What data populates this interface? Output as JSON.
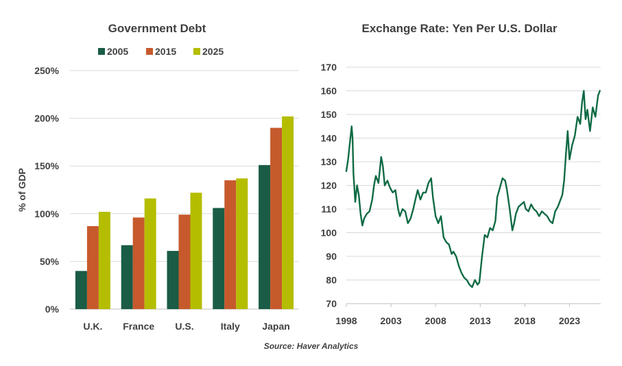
{
  "source_text": "Source: Haver Analytics",
  "chart_data": [
    {
      "type": "bar",
      "title": "Government Debt",
      "ylabel": "% of GDP",
      "xlabel": "",
      "ylim": [
        0,
        250
      ],
      "yticks": [
        "0%",
        "50%",
        "100%",
        "150%",
        "200%",
        "250%"
      ],
      "ytick_values": [
        0,
        50,
        100,
        150,
        200,
        250
      ],
      "categories": [
        "U.K.",
        "France",
        "U.S.",
        "Italy",
        "Japan"
      ],
      "series": [
        {
          "name": "2005",
          "color": "#1a5c45",
          "values": [
            40,
            67,
            61,
            106,
            151
          ]
        },
        {
          "name": "2015",
          "color": "#c65a2c",
          "values": [
            87,
            96,
            99,
            135,
            190
          ]
        },
        {
          "name": "2025",
          "color": "#b5bd00",
          "values": [
            102,
            116,
            122,
            137,
            202
          ]
        }
      ],
      "legend_position": "top-center",
      "grid": true
    },
    {
      "type": "line",
      "title": "Exchange Rate: Yen Per U.S. Dollar",
      "xlabel": "",
      "ylabel": "",
      "xlim": [
        1998,
        2026.5
      ],
      "ylim": [
        70,
        170
      ],
      "xticks": [
        "1998",
        "2003",
        "2008",
        "2013",
        "2018",
        "2023"
      ],
      "xtick_values": [
        1998,
        2003,
        2008,
        2013,
        2018,
        2023
      ],
      "yticks": [
        "70",
        "80",
        "90",
        "100",
        "110",
        "120",
        "130",
        "140",
        "150",
        "160",
        "170"
      ],
      "ytick_values": [
        70,
        80,
        90,
        100,
        110,
        120,
        130,
        140,
        150,
        160,
        170
      ],
      "grid": true,
      "series": [
        {
          "color": "#0f6a44",
          "x": [
            1998.0,
            1998.2,
            1998.4,
            1998.6,
            1998.7,
            1998.8,
            1999.0,
            1999.2,
            1999.4,
            1999.6,
            1999.8,
            2000.0,
            2000.3,
            2000.6,
            2000.9,
            2001.1,
            2001.3,
            2001.6,
            2001.9,
            2002.1,
            2002.3,
            2002.6,
            2002.9,
            2003.2,
            2003.5,
            2003.8,
            2004.0,
            2004.3,
            2004.6,
            2004.9,
            2005.2,
            2005.5,
            2005.8,
            2006.0,
            2006.3,
            2006.6,
            2006.9,
            2007.2,
            2007.5,
            2007.7,
            2008.0,
            2008.3,
            2008.6,
            2008.9,
            2009.2,
            2009.5,
            2009.8,
            2010.0,
            2010.3,
            2010.6,
            2010.9,
            2011.2,
            2011.5,
            2011.8,
            2012.1,
            2012.4,
            2012.7,
            2012.9,
            2013.2,
            2013.5,
            2013.8,
            2014.1,
            2014.4,
            2014.7,
            2014.9,
            2015.2,
            2015.5,
            2015.8,
            2016.0,
            2016.3,
            2016.6,
            2016.8,
            2017.0,
            2017.3,
            2017.6,
            2017.9,
            2018.1,
            2018.4,
            2018.7,
            2019.0,
            2019.3,
            2019.6,
            2019.9,
            2020.2,
            2020.5,
            2020.8,
            2021.1,
            2021.4,
            2021.7,
            2022.0,
            2022.2,
            2022.4,
            2022.6,
            2022.8,
            2023.0,
            2023.3,
            2023.6,
            2023.9,
            2024.2,
            2024.4,
            2024.6,
            2024.8,
            2025.0,
            2025.3,
            2025.6,
            2025.9,
            2026.2,
            2026.4
          ],
          "y": [
            126,
            131,
            138,
            145,
            140,
            125,
            113,
            120,
            116,
            108,
            103,
            106,
            108,
            109,
            114,
            120,
            124,
            121,
            132,
            128,
            120,
            122,
            119,
            117,
            118,
            110,
            107,
            110,
            109,
            104,
            106,
            110,
            115,
            118,
            114,
            117,
            117,
            121,
            123,
            115,
            107,
            104,
            107,
            98,
            96,
            95,
            91,
            92,
            90,
            86,
            83,
            81,
            80,
            78,
            77,
            80,
            78,
            79,
            90,
            99,
            98,
            102,
            101,
            105,
            115,
            119,
            123,
            122,
            118,
            110,
            101,
            104,
            108,
            111,
            112,
            113,
            110,
            109,
            112,
            110,
            109,
            107,
            109,
            108,
            107,
            105,
            104,
            109,
            111,
            114,
            116,
            122,
            133,
            143,
            131,
            137,
            141,
            149,
            146,
            155,
            160,
            148,
            152,
            143,
            153,
            149,
            158,
            160
          ]
        }
      ]
    }
  ]
}
